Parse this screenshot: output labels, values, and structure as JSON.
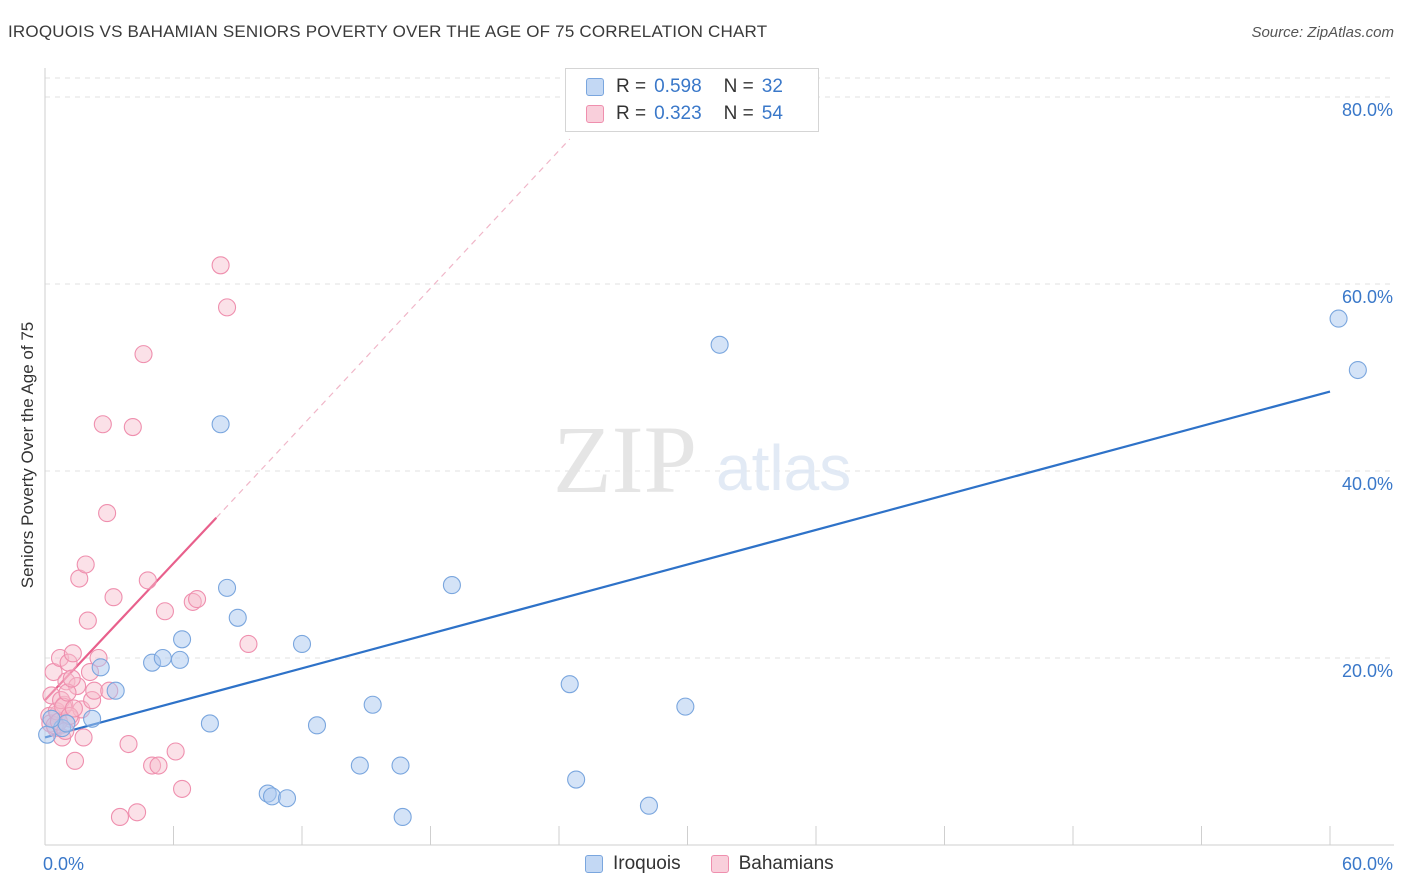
{
  "title": "IROQUOIS VS BAHAMIAN SENIORS POVERTY OVER THE AGE OF 75 CORRELATION CHART",
  "source": "Source: ZipAtlas.com",
  "watermark": {
    "zip": "ZIP",
    "atlas": "atlas"
  },
  "colors": {
    "iroquois_fill": "#aac8f0",
    "iroquois_stroke": "#7aa6de",
    "iroquois_line": "#2e72c8",
    "bahamians_fill": "#f6bccd",
    "bahamians_stroke": "#ef8fae",
    "bahamians_line": "#e8608c",
    "tick_label": "#3a78c9"
  },
  "legend": {
    "rows": [
      {
        "r_label": "R =",
        "r_value": "0.598",
        "n_label": "N =",
        "n_value": "32"
      },
      {
        "r_label": "R =",
        "r_value": "0.323",
        "n_label": "N =",
        "n_value": "54"
      }
    ],
    "bottom": [
      "Iroquois",
      "Bahamians"
    ]
  },
  "chart_data": {
    "type": "scatter",
    "title": "IROQUOIS VS BAHAMIAN SENIORS POVERTY OVER THE AGE OF 75 CORRELATION CHART",
    "xlabel": "",
    "ylabel": "Seniors Poverty Over the Age of 75",
    "xlim": [
      0,
      60
    ],
    "ylim": [
      0,
      85
    ],
    "x_tick_labels": [
      "0.0%",
      "60.0%"
    ],
    "y_ticks": [
      20,
      40,
      60,
      80
    ],
    "y_tick_labels": [
      "20.0%",
      "40.0%",
      "60.0%",
      "80.0%"
    ],
    "series": [
      {
        "name": "Iroquois",
        "points": [
          [
            0.1,
            11.8
          ],
          [
            0.8,
            12.5
          ],
          [
            1.0,
            13.0
          ],
          [
            2.2,
            13.5
          ],
          [
            2.6,
            19.0
          ],
          [
            3.3,
            16.5
          ],
          [
            5.0,
            19.5
          ],
          [
            5.5,
            20.0
          ],
          [
            6.3,
            19.8
          ],
          [
            6.4,
            22.0
          ],
          [
            7.7,
            13.0
          ],
          [
            8.2,
            45.0
          ],
          [
            8.5,
            27.5
          ],
          [
            9.0,
            24.3
          ],
          [
            10.4,
            5.5
          ],
          [
            10.6,
            5.2
          ],
          [
            11.3,
            5.0
          ],
          [
            12.0,
            21.5
          ],
          [
            12.7,
            12.8
          ],
          [
            14.7,
            8.5
          ],
          [
            15.3,
            15.0
          ],
          [
            16.6,
            8.5
          ],
          [
            16.7,
            3.0
          ],
          [
            19.0,
            27.8
          ],
          [
            24.5,
            17.2
          ],
          [
            24.8,
            7.0
          ],
          [
            28.2,
            4.2
          ],
          [
            29.9,
            14.8
          ],
          [
            31.5,
            53.5
          ],
          [
            60.4,
            56.3
          ],
          [
            61.3,
            50.8
          ],
          [
            0.3,
            13.5
          ]
        ],
        "trend": [
          [
            0,
            11.5
          ],
          [
            60,
            48.5
          ]
        ]
      },
      {
        "name": "Bahamians",
        "points": [
          [
            0.2,
            13.8
          ],
          [
            0.3,
            16.0
          ],
          [
            0.4,
            18.5
          ],
          [
            0.5,
            12.5
          ],
          [
            0.6,
            14.0
          ],
          [
            0.7,
            20.0
          ],
          [
            0.8,
            11.5
          ],
          [
            0.9,
            15.0
          ],
          [
            1.0,
            17.5
          ],
          [
            1.1,
            19.5
          ],
          [
            1.2,
            13.5
          ],
          [
            1.3,
            20.5
          ],
          [
            1.4,
            9.0
          ],
          [
            1.5,
            17.0
          ],
          [
            1.6,
            28.5
          ],
          [
            1.7,
            14.5
          ],
          [
            1.8,
            11.5
          ],
          [
            1.9,
            30.0
          ],
          [
            2.0,
            24.0
          ],
          [
            2.1,
            18.5
          ],
          [
            2.2,
            15.5
          ],
          [
            2.3,
            16.5
          ],
          [
            2.5,
            20.0
          ],
          [
            2.7,
            45.0
          ],
          [
            2.9,
            35.5
          ],
          [
            3.0,
            16.5
          ],
          [
            3.2,
            26.5
          ],
          [
            3.5,
            3.0
          ],
          [
            3.9,
            10.8
          ],
          [
            4.1,
            44.7
          ],
          [
            4.3,
            3.5
          ],
          [
            4.6,
            52.5
          ],
          [
            4.8,
            28.3
          ],
          [
            5.0,
            8.5
          ],
          [
            5.3,
            8.5
          ],
          [
            5.6,
            25.0
          ],
          [
            6.1,
            10.0
          ],
          [
            6.4,
            6.0
          ],
          [
            6.9,
            26.0
          ],
          [
            7.1,
            26.3
          ],
          [
            8.2,
            62.0
          ],
          [
            8.5,
            57.5
          ],
          [
            9.5,
            21.5
          ],
          [
            0.25,
            13.0
          ],
          [
            0.45,
            12.8
          ],
          [
            0.55,
            14.3
          ],
          [
            0.65,
            13.2
          ],
          [
            0.75,
            15.5
          ],
          [
            0.85,
            14.8
          ],
          [
            0.95,
            12.2
          ],
          [
            1.05,
            16.3
          ],
          [
            1.15,
            13.8
          ],
          [
            1.25,
            17.8
          ],
          [
            1.35,
            14.6
          ]
        ],
        "trend": [
          [
            0,
            15.5
          ],
          [
            8,
            35.0
          ]
        ],
        "trend_extension": [
          [
            8,
            35.0
          ],
          [
            24.5,
            75.5
          ]
        ]
      }
    ]
  }
}
